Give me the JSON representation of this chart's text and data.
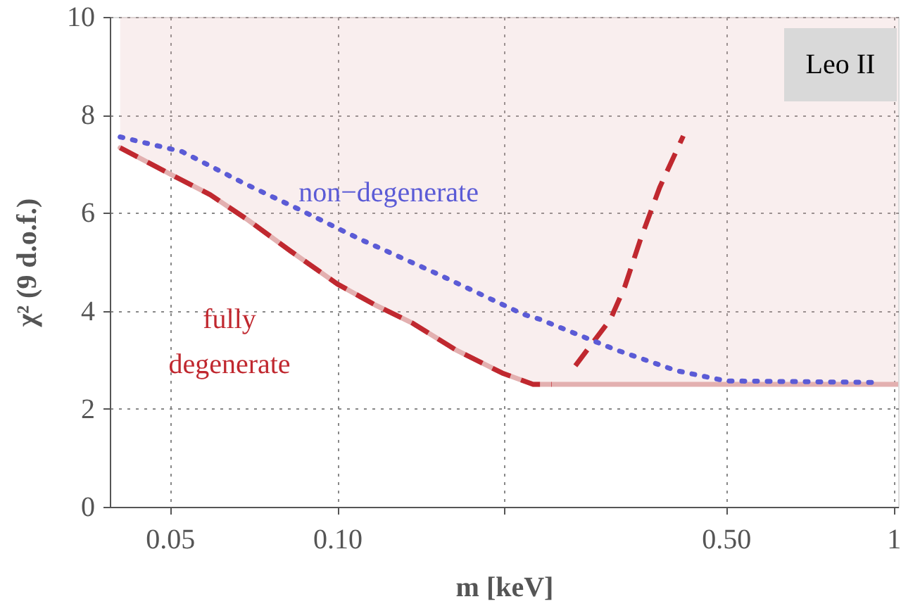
{
  "chart_data": {
    "type": "line",
    "xlabel": "m  [keV]",
    "ylabel": "χ²   (9 d.o.f.)",
    "annotations": [
      "Leo II"
    ],
    "log": "x",
    "grid": true,
    "marker": "none",
    "xlim": [
      0.039,
      1.02
    ],
    "xticks": [
      0.05,
      {
        "value": 0.1,
        "label": "0.10"
      },
      {
        "value": 0.2,
        "label": null
      },
      {
        "value": 0.5,
        "label": "0.50"
      },
      1
    ],
    "ylim": [
      0,
      10
    ],
    "yticks": [
      0,
      2,
      4,
      6,
      8,
      10
    ],
    "series": [
      {
        "color": "#e3b0b0",
        "line_style": "solid",
        "x": [
          0.0407,
          0.0497,
          0.0591,
          0.0692,
          0.0824,
          0.1,
          0.117,
          0.137,
          0.163,
          0.198,
          0.225,
          1.02
        ],
        "values": [
          7.33,
          6.81,
          6.37,
          5.85,
          5.22,
          4.55,
          4.12,
          3.74,
          3.21,
          2.73,
          2.5,
          2.5
        ],
        "lower": [
          7.33,
          6.81,
          6.37,
          5.85,
          5.22,
          4.55,
          4.12,
          3.74,
          3.21,
          2.73,
          2.5,
          2.5
        ],
        "upper": [
          10,
          10,
          10,
          10,
          10,
          10,
          10,
          10,
          10,
          10,
          10,
          10
        ]
      },
      {
        "name": "fully degenerate",
        "color": "#c0282f",
        "line_style": "dashed",
        "x": [
          0.0407,
          0.0497,
          0.0591,
          0.0692,
          0.0824,
          0.1,
          0.117,
          0.137,
          0.163,
          0.198,
          0.225,
          0.243,
          0.255,
          0.268,
          0.31,
          0.329,
          0.351,
          0.38,
          0.419
        ],
        "values": [
          7.33,
          6.81,
          6.37,
          5.85,
          5.22,
          4.55,
          4.12,
          3.74,
          3.21,
          2.73,
          2.5,
          2.5,
          null,
          2.88,
          3.83,
          4.5,
          5.46,
          6.52,
          7.57
        ]
      },
      {
        "name": "non−degenerate",
        "color": "#5b5bd6",
        "line_style": "dotted",
        "x": [
          0.0407,
          0.0526,
          0.0678,
          0.0865,
          0.11,
          0.149,
          0.216,
          0.231,
          0.316,
          0.407,
          0.5,
          0.914
        ],
        "values": [
          7.55,
          7.25,
          6.61,
          6.04,
          5.46,
          4.79,
          3.93,
          3.83,
          3.21,
          2.78,
          2.57,
          2.54
        ]
      }
    ]
  }
}
